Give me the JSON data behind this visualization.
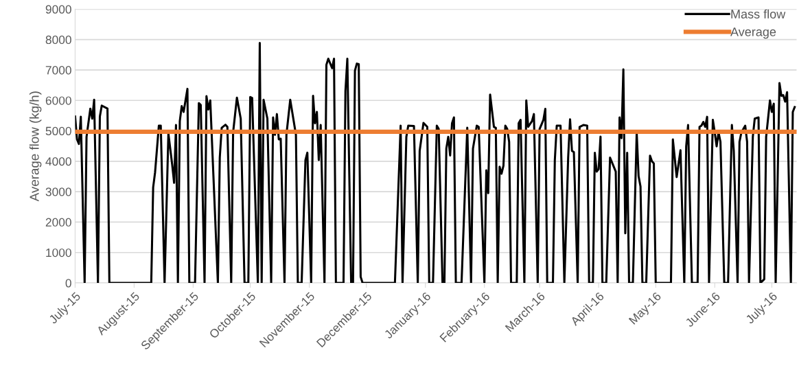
{
  "chart_data": {
    "type": "line",
    "ylabel": "Average flow (kg/h)",
    "xlim": [
      "2015-07-01",
      "2016-07-14"
    ],
    "xticks": [
      {
        "value": "2015-07-01",
        "label": "July-15"
      },
      {
        "value": "2015-08-01",
        "label": "August-15"
      },
      {
        "value": "2015-09-01",
        "label": "September-15"
      },
      {
        "value": "2015-10-01",
        "label": "October-15"
      },
      {
        "value": "2015-11-01",
        "label": "November-15"
      },
      {
        "value": "2015-12-01",
        "label": "December-15"
      },
      {
        "value": "2016-01-01",
        "label": "January-16"
      },
      {
        "value": "2016-02-01",
        "label": "February-16"
      },
      {
        "value": "2016-03-01",
        "label": "March-16"
      },
      {
        "value": "2016-04-01",
        "label": "April-16"
      },
      {
        "value": "2016-05-01",
        "label": "May-16"
      },
      {
        "value": "2016-06-01",
        "label": "June-16"
      },
      {
        "value": "2016-07-01",
        "label": "July-16"
      }
    ],
    "ylim": [
      0,
      9000
    ],
    "yticks": [
      0,
      1000,
      2000,
      3000,
      4000,
      5000,
      6000,
      7000,
      8000,
      9000
    ],
    "grid": "y",
    "legend": "top right",
    "line_style": "solid",
    "marker": "none",
    "series": [
      {
        "name": "Mass flow",
        "color": "#000000",
        "x": [
          "2015-07-01",
          "2015-07-02",
          "2015-07-03",
          "2015-07-04",
          "2015-07-06",
          "2015-07-07",
          "2015-07-09",
          "2015-07-10",
          "2015-07-11",
          "2015-07-13",
          "2015-07-14",
          "2015-07-15",
          "2015-07-18",
          "2015-07-19",
          "2015-08-10",
          "2015-08-11",
          "2015-08-12",
          "2015-08-14",
          "2015-08-15",
          "2015-08-17",
          "2015-08-19",
          "2015-08-21",
          "2015-08-22",
          "2015-08-23",
          "2015-08-24",
          "2015-08-25",
          "2015-08-26",
          "2015-08-27",
          "2015-08-29",
          "2015-08-30",
          "2015-09-02",
          "2015-09-04",
          "2015-09-05",
          "2015-09-07",
          "2015-09-08",
          "2015-09-09",
          "2015-09-10",
          "2015-09-14",
          "2015-09-15",
          "2015-09-16",
          "2015-09-18",
          "2015-09-19",
          "2015-09-21",
          "2015-09-22",
          "2015-09-24",
          "2015-09-26",
          "2015-09-28",
          "2015-09-30",
          "2015-10-01",
          "2015-10-02",
          "2015-10-05",
          "2015-10-06",
          "2015-10-07",
          "2015-10-08",
          "2015-10-10",
          "2015-10-12",
          "2015-10-13",
          "2015-10-14",
          "2015-10-15",
          "2015-10-16",
          "2015-10-17",
          "2015-10-19",
          "2015-10-20",
          "2015-10-22",
          "2015-10-25",
          "2015-10-26",
          "2015-10-28",
          "2015-10-30",
          "2015-10-31",
          "2015-11-02",
          "2015-11-03",
          "2015-11-04",
          "2015-11-05",
          "2015-11-06",
          "2015-11-07",
          "2015-11-09",
          "2015-11-10",
          "2015-11-11",
          "2015-11-13",
          "2015-11-14",
          "2015-11-15",
          "2015-11-19",
          "2015-11-20",
          "2015-11-21",
          "2015-11-23",
          "2015-11-24",
          "2015-11-25",
          "2015-11-26",
          "2015-11-27",
          "2015-11-28",
          "2015-11-29",
          "2015-12-16",
          "2015-12-19",
          "2015-12-20",
          "2015-12-22",
          "2015-12-23",
          "2015-12-26",
          "2015-12-28",
          "2015-12-29",
          "2015-12-31",
          "2016-01-02",
          "2016-01-03",
          "2016-01-05",
          "2016-01-07",
          "2016-01-08",
          "2016-01-10",
          "2016-01-11",
          "2016-01-12",
          "2016-01-13",
          "2016-01-14",
          "2016-01-15",
          "2016-01-16",
          "2016-01-17",
          "2016-01-20",
          "2016-01-23",
          "2016-01-25",
          "2016-01-26",
          "2016-01-28",
          "2016-01-29",
          "2016-02-01",
          "2016-02-02",
          "2016-02-03",
          "2016-02-04",
          "2016-02-06",
          "2016-02-07",
          "2016-02-08",
          "2016-02-09",
          "2016-02-10",
          "2016-02-11",
          "2016-02-12",
          "2016-02-13",
          "2016-02-14",
          "2016-02-15",
          "2016-02-18",
          "2016-02-19",
          "2016-02-20",
          "2016-02-22",
          "2016-02-23",
          "2016-02-24",
          "2016-02-26",
          "2016-02-27",
          "2016-02-29",
          "2016-03-01",
          "2016-03-03",
          "2016-03-04",
          "2016-03-05",
          "2016-03-08",
          "2016-03-09",
          "2016-03-10",
          "2016-03-12",
          "2016-03-14",
          "2016-03-16",
          "2016-03-17",
          "2016-03-18",
          "2016-03-19",
          "2016-03-21",
          "2016-03-22",
          "2016-03-24",
          "2016-03-26",
          "2016-03-27",
          "2016-03-29",
          "2016-03-30",
          "2016-03-31",
          "2016-04-01",
          "2016-04-02",
          "2016-04-03",
          "2016-04-05",
          "2016-04-07",
          "2016-04-10",
          "2016-04-11",
          "2016-04-12",
          "2016-04-13",
          "2016-04-14",
          "2016-04-15",
          "2016-04-16",
          "2016-04-17",
          "2016-04-19",
          "2016-04-21",
          "2016-04-22",
          "2016-04-23",
          "2016-04-24",
          "2016-04-26",
          "2016-04-28",
          "2016-04-29",
          "2016-04-30",
          "2016-05-01",
          "2016-05-09",
          "2016-05-10",
          "2016-05-12",
          "2016-05-14",
          "2016-05-16",
          "2016-05-17",
          "2016-05-18",
          "2016-05-20",
          "2016-05-23",
          "2016-05-24",
          "2016-05-25",
          "2016-05-26",
          "2016-05-27",
          "2016-05-28",
          "2016-05-29",
          "2016-05-31",
          "2016-06-01",
          "2016-06-02",
          "2016-06-03",
          "2016-06-04",
          "2016-06-06",
          "2016-06-08",
          "2016-06-10",
          "2016-06-11",
          "2016-06-13",
          "2016-06-14",
          "2016-06-15",
          "2016-06-17",
          "2016-06-18",
          "2016-06-19",
          "2016-06-21",
          "2016-06-22",
          "2016-06-24",
          "2016-06-25",
          "2016-06-27",
          "2016-06-28",
          "2016-06-30",
          "2016-07-01",
          "2016-07-02",
          "2016-07-03",
          "2016-07-05",
          "2016-07-06",
          "2016-07-07",
          "2016-07-08",
          "2016-07-09",
          "2016-07-11",
          "2016-07-12",
          "2016-07-13"
        ],
        "values": [
          5470,
          4720,
          4570,
          5460,
          0,
          4800,
          5730,
          5400,
          6020,
          0,
          5470,
          5830,
          5730,
          0,
          0,
          3140,
          3630,
          5170,
          5170,
          0,
          4910,
          3890,
          3290,
          5190,
          0,
          5320,
          5810,
          5620,
          6380,
          0,
          0,
          5910,
          5850,
          0,
          6140,
          5700,
          6000,
          0,
          4120,
          5100,
          5200,
          5130,
          0,
          4950,
          6090,
          5400,
          0,
          0,
          6110,
          6080,
          0,
          7890,
          0,
          6020,
          5400,
          0,
          5440,
          4870,
          5550,
          4720,
          4740,
          0,
          4870,
          6020,
          4870,
          0,
          0,
          4040,
          4280,
          0,
          6150,
          5250,
          5620,
          4040,
          5190,
          0,
          7170,
          7370,
          7060,
          7370,
          0,
          0,
          6300,
          7370,
          0,
          0,
          6980,
          7210,
          7190,
          200,
          0,
          0,
          5170,
          0,
          4800,
          5170,
          5160,
          0,
          4340,
          5260,
          5130,
          0,
          0,
          5170,
          5060,
          0,
          0,
          4420,
          4800,
          4190,
          5250,
          5440,
          0,
          0,
          5100,
          0,
          4420,
          5170,
          5130,
          0,
          3700,
          2950,
          6190,
          5130,
          5100,
          0,
          3820,
          3590,
          3850,
          5170,
          5060,
          4640,
          0,
          0,
          5250,
          5360,
          0,
          6000,
          5130,
          5320,
          5550,
          0,
          5060,
          5360,
          5720,
          0,
          0,
          4040,
          5170,
          5170,
          0,
          4120,
          5380,
          4340,
          4300,
          0,
          5130,
          5190,
          5170,
          0,
          0,
          4280,
          3660,
          3740,
          4810,
          0,
          0,
          4120,
          3660,
          0,
          5440,
          4760,
          7020,
          1630,
          4280,
          0,
          0,
          4950,
          3510,
          3170,
          0,
          0,
          4180,
          4000,
          3930,
          0,
          0,
          4720,
          3480,
          4360,
          0,
          4490,
          5190,
          0,
          0,
          5130,
          5170,
          5290,
          5130,
          5460,
          0,
          5360,
          4950,
          4490,
          4950,
          4640,
          0,
          0,
          5190,
          4340,
          0,
          4640,
          4950,
          5170,
          4640,
          0,
          4800,
          5400,
          5440,
          0,
          120,
          4800,
          6000,
          5620,
          5890,
          0,
          6570,
          6150,
          6170,
          5960,
          6270,
          0,
          5620,
          5780
        ]
      },
      {
        "name": "Average",
        "color": "#ed7d31",
        "x": [
          "2015-07-01",
          "2016-07-14"
        ],
        "values": [
          4970,
          4970
        ]
      }
    ]
  }
}
